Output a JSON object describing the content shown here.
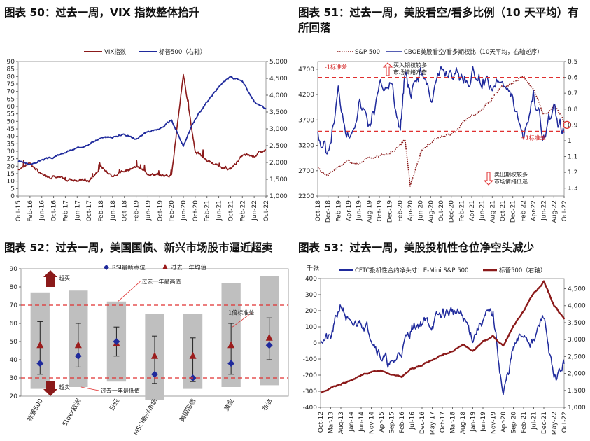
{
  "colors": {
    "navy": "#1f2a9c",
    "maroon": "#8b1a1a",
    "red_dash": "#e03030",
    "gray_bar": "#bfbfbf",
    "diamond": "#1f2a9c",
    "triangle": "#9b1c1c"
  },
  "panels": {
    "p50": {
      "title": "图表 50：过去一周，VIX 指数整体抬升"
    },
    "p51": {
      "title": "图表 51：过去一周，美股看空/看多比例（10 天平均）有\n所回落"
    },
    "p52": {
      "title": "图表 52：过去一周，美国国债、新兴市场股市逼近超卖"
    },
    "p53": {
      "title": "图表 53：过去一周，美股投机性仓位净空头减少"
    }
  },
  "chart_data": [
    {
      "id": "p50",
      "type": "line",
      "title": "",
      "x_ticks": [
        "Oct-15",
        "Feb-16",
        "Jun-16",
        "Oct-16",
        "Feb-17",
        "Jun-17",
        "Oct-17",
        "Feb-18",
        "Jun-18",
        "Oct-18",
        "Feb-19",
        "Jun-19",
        "Oct-19",
        "Feb-20",
        "Jun-20",
        "Oct-20",
        "Feb-21",
        "Jun-21",
        "Oct-21",
        "Feb-22",
        "Jun-22",
        "Oct-22"
      ],
      "y_left": {
        "ticks": [
          "0",
          "5",
          "10",
          "15",
          "20",
          "25",
          "30",
          "35",
          "40",
          "45",
          "50",
          "55",
          "60",
          "65",
          "70",
          "75",
          "80",
          "85",
          "90"
        ],
        "lim": [
          0,
          90
        ]
      },
      "y_right": {
        "ticks": [
          "1,000",
          "1,500",
          "2,000",
          "2,500",
          "3,000",
          "3,500",
          "4,000",
          "4,500",
          "5,000"
        ],
        "lim": [
          1000,
          5000
        ]
      },
      "series": [
        {
          "name": "VIX指数",
          "axis": "left",
          "color": "#8b1a1a",
          "x": [
            0,
            1,
            2,
            3,
            4,
            5,
            6,
            7,
            8,
            9,
            10,
            11,
            12,
            13,
            14,
            15,
            16,
            17,
            18,
            19,
            20,
            21
          ],
          "values": [
            18,
            22,
            14,
            13,
            11,
            11,
            10,
            20,
            13,
            17,
            20,
            15,
            14,
            14,
            82,
            30,
            24,
            20,
            18,
            27,
            27,
            31
          ]
        },
        {
          "name": "标普500（右轴）",
          "axis": "right",
          "color": "#1f2a9c",
          "x": [
            0,
            1,
            2,
            3,
            4,
            5,
            6,
            7,
            8,
            9,
            10,
            11,
            12,
            13,
            14,
            15,
            16,
            17,
            18,
            19,
            20,
            21
          ],
          "values": [
            2050,
            1930,
            2080,
            2150,
            2300,
            2420,
            2560,
            2720,
            2750,
            2850,
            2700,
            2920,
            3000,
            3250,
            2500,
            3300,
            3800,
            4250,
            4550,
            4400,
            3800,
            3600
          ]
        }
      ],
      "legend_position": "top"
    },
    {
      "id": "p51",
      "type": "line",
      "title": "",
      "x_ticks": [
        "Oct-18",
        "Dec-18",
        "Feb-19",
        "Apr-19",
        "Jun-19",
        "Aug-19",
        "Oct-19",
        "Dec-19",
        "Feb-20",
        "Apr-20",
        "Jun-20",
        "Aug-20",
        "Oct-20",
        "Dec-20",
        "Feb-21",
        "Apr-21",
        "Jun-21",
        "Aug-21",
        "Oct-21",
        "Dec-21",
        "Feb-22",
        "Apr-22",
        "Jun-22",
        "Aug-22",
        "Oct-22"
      ],
      "y_left": {
        "ticks": [
          "2200",
          "2700",
          "3200",
          "3700",
          "4200",
          "4700"
        ],
        "lim": [
          2200,
          4850
        ]
      },
      "y_right": {
        "ticks": [
          "0.5",
          "0.6",
          "0.7",
          "0.8",
          "0.9",
          "1",
          "1.1",
          "1.2",
          "1.3"
        ],
        "lim": [
          0.5,
          1.35
        ],
        "reversed": true
      },
      "series": [
        {
          "name": "S&P 500",
          "axis": "left",
          "color": "#8b1a1a",
          "style": "dotted",
          "x": [
            0,
            2,
            4,
            6,
            8,
            10,
            12,
            14,
            16,
            17,
            18,
            20,
            22,
            24,
            26,
            28,
            30,
            32,
            34,
            36,
            38,
            40,
            42,
            44,
            46,
            48
          ],
          "values": [
            2750,
            2600,
            2780,
            2900,
            2800,
            2950,
            2990,
            3050,
            3200,
            3300,
            2400,
            3050,
            3250,
            3400,
            3400,
            3600,
            3800,
            3900,
            4150,
            4350,
            4400,
            4600,
            4300,
            3800,
            4000,
            3650
          ]
        },
        {
          "name": "CBOE美股看空/看多期权比（10天平均，右轴逆序）",
          "axis": "right",
          "color": "#1f2a9c",
          "x": [
            0,
            2,
            4,
            6,
            8,
            10,
            12,
            14,
            16,
            17,
            18,
            20,
            22,
            24,
            26,
            28,
            30,
            32,
            34,
            36,
            38,
            40,
            42,
            44,
            46,
            48
          ],
          "values": [
            0.95,
            1.1,
            0.7,
            0.95,
            0.75,
            0.9,
            0.7,
            0.6,
            0.95,
            0.6,
            0.75,
            0.55,
            0.7,
            0.6,
            0.55,
            0.6,
            0.58,
            0.6,
            0.65,
            0.55,
            0.75,
            0.95,
            0.7,
            0.95,
            0.8,
            0.95
          ]
        }
      ],
      "reference_lines": [
        {
          "label": "-1标准差",
          "value": 0.6,
          "axis": "right"
        },
        {
          "label": "+1标准差",
          "value": 0.94,
          "axis": "right"
        }
      ],
      "annotations": [
        "买入期权较多，市场情绪亢奋",
        "卖出期权较多，市场情绪低迷"
      ],
      "legend_position": "top"
    },
    {
      "id": "p52",
      "type": "bar",
      "title": "",
      "categories": [
        "标普500",
        "Stoxx欧洲",
        "日经",
        "MSCI新兴市场",
        "美国国债",
        "黄金",
        "布油"
      ],
      "y_ticks": [
        "20",
        "30",
        "40",
        "50",
        "60",
        "70",
        "80",
        "90"
      ],
      "ylim": [
        20,
        90
      ],
      "range_low": [
        24,
        25,
        28,
        18,
        24,
        25,
        26
      ],
      "range_high": [
        77,
        78,
        72,
        65,
        65,
        82,
        86
      ],
      "series": [
        {
          "name": "RSI最新点位",
          "marker": "diamond",
          "values": [
            38,
            42,
            50,
            32,
            30,
            38,
            48
          ]
        },
        {
          "name": "过去一年均值",
          "marker": "triangle",
          "values": [
            48,
            48,
            49,
            42,
            42,
            48,
            52
          ]
        }
      ],
      "error_low": [
        32,
        36,
        42,
        27,
        28,
        32,
        40
      ],
      "error_high": [
        61,
        60,
        58,
        53,
        52,
        60,
        63
      ],
      "reference_lines": [
        {
          "label": "超买",
          "value": 70
        },
        {
          "label": "超卖",
          "value": 30
        }
      ],
      "annotations": [
        "过去一年最高值",
        "1倍标准差",
        "过去一年最低值"
      ],
      "legend_position": "top"
    },
    {
      "id": "p53",
      "type": "line",
      "title": "",
      "y_left_unit": "千张",
      "x_ticks": [
        "Oct-12",
        "Mar-13",
        "Aug-13",
        "Jan-14",
        "Jun-14",
        "Nov-14",
        "Apr-15",
        "Sep-15",
        "Feb-16",
        "Jul-16",
        "Dec-16",
        "May-17",
        "Oct-17",
        "Mar-18",
        "Aug-18",
        "Jan-19",
        "Jun-19",
        "Nov-19",
        "Apr-20",
        "Sep-20",
        "Feb-21",
        "Jul-21",
        "Dec-21",
        "May-22",
        "Oct-22"
      ],
      "y_left": {
        "ticks": [
          "-400",
          "-300",
          "-200",
          "-100",
          "0",
          "100",
          "200",
          "300",
          "400"
        ],
        "lim": [
          -400,
          400
        ]
      },
      "y_right": {
        "ticks": [
          "1,000",
          "1,500",
          "2,000",
          "2,500",
          "3,000",
          "3,500",
          "4,000",
          "4,500"
        ],
        "lim": [
          1000,
          4800
        ]
      },
      "series": [
        {
          "name": "CFTC投机性合约净头寸：E-Mini S&P 500",
          "axis": "left",
          "color": "#1f2a9c",
          "x": [
            0,
            1,
            2,
            3,
            4,
            5,
            6,
            7,
            8,
            9,
            10,
            11,
            12,
            13,
            14,
            15,
            16,
            17,
            18,
            19,
            20,
            21,
            22,
            23,
            24
          ],
          "values": [
            40,
            20,
            250,
            80,
            150,
            60,
            -80,
            -150,
            -40,
            100,
            130,
            120,
            180,
            200,
            160,
            40,
            150,
            180,
            -330,
            -40,
            60,
            0,
            180,
            -250,
            -130
          ]
        },
        {
          "name": "标普500（右轴）",
          "axis": "right",
          "color": "#8b1a1a",
          "x": [
            0,
            1,
            2,
            3,
            4,
            5,
            6,
            7,
            8,
            9,
            10,
            11,
            12,
            13,
            14,
            15,
            16,
            17,
            18,
            19,
            20,
            21,
            22,
            23,
            24
          ],
          "values": [
            1430,
            1560,
            1680,
            1800,
            1950,
            2050,
            2100,
            1950,
            1900,
            2150,
            2250,
            2400,
            2550,
            2650,
            2850,
            2650,
            2950,
            3100,
            2800,
            3400,
            3850,
            4350,
            4700,
            4000,
            3600
          ]
        }
      ],
      "legend_position": "top"
    }
  ]
}
